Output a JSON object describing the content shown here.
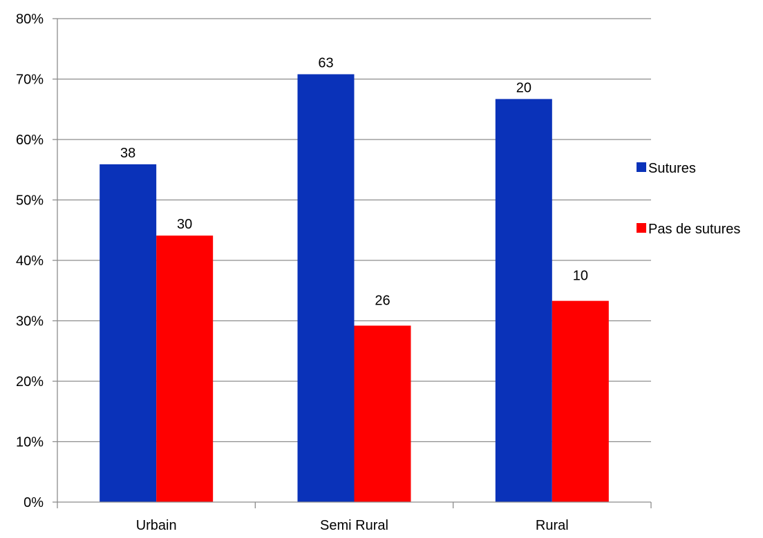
{
  "chart_data": {
    "type": "bar",
    "title": "",
    "xlabel": "",
    "ylabel": "",
    "categories": [
      "Urbain",
      "Semi Rural",
      "Rural"
    ],
    "ylim": [
      0,
      0.8
    ],
    "yticks": [
      0,
      0.1,
      0.2,
      0.3,
      0.4,
      0.5,
      0.6,
      0.7,
      0.8
    ],
    "ytick_labels": [
      "0%",
      "10%",
      "20%",
      "30%",
      "40%",
      "50%",
      "60%",
      "70%",
      "80%"
    ],
    "grid": true,
    "legend_position": "right",
    "series": [
      {
        "name": "Sutures",
        "color": "#0a32b9",
        "values": [
          0.559,
          0.708,
          0.667
        ],
        "labels": [
          "38",
          "63",
          "20"
        ]
      },
      {
        "name": "Pas de sutures",
        "color": "#ff0000",
        "values": [
          0.441,
          0.292,
          0.333
        ],
        "labels": [
          "30",
          "26",
          "10"
        ]
      }
    ]
  }
}
